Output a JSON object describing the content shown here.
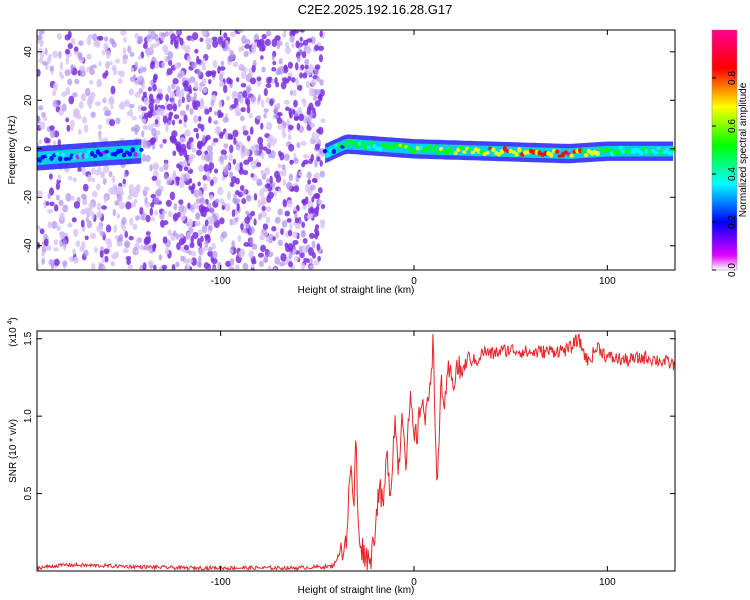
{
  "title": "C2E2.2025.192.16.28.G17",
  "colors": {
    "line": "#e8262a",
    "speckle": "#7a2ee0",
    "speckle_light": "#d7c2f4",
    "frame": "#000000"
  },
  "chart_data": [
    {
      "type": "heatmap",
      "xlabel": "Height of straight line (km)",
      "ylabel": "Frequency (Hz)",
      "xlim": [
        -195,
        135
      ],
      "ylim": [
        -50,
        49
      ],
      "xticks": [
        -100,
        0,
        100
      ],
      "xtick_labels": [
        "-100",
        "0",
        "100"
      ],
      "yticks": [
        -40,
        -20,
        0,
        20,
        40
      ],
      "ytick_labels": [
        "-40",
        "-20",
        "0",
        "20",
        "40"
      ],
      "grid": false,
      "colorbar": {
        "label": "Normalized spectral amplitude",
        "range": [
          0,
          1
        ],
        "ticks": [
          0.0,
          0.2,
          0.4,
          0.6,
          0.8
        ],
        "tick_labels": [
          "0.0",
          "0.2",
          "0.4",
          "0.6",
          "0.8"
        ],
        "colormap": [
          "#ffffff",
          "#e000ff",
          "#0000ff",
          "#00ffff",
          "#00ff00",
          "#ffff00",
          "#ff0000",
          "#ff0090"
        ]
      },
      "noise_bands": [
        {
          "x_range": [
            -195,
            -140
          ],
          "density": "sparse"
        },
        {
          "x_range": [
            -140,
            -47
          ],
          "density": "dense"
        }
      ],
      "ridge": [
        {
          "x": -195,
          "y": -4,
          "amplitude": 0.3
        },
        {
          "x": -160,
          "y": -2,
          "amplitude": 0.3
        },
        {
          "x": -140,
          "y": -1,
          "amplitude": 0.25
        },
        {
          "x": -46,
          "y": -2,
          "amplitude": 0.3
        },
        {
          "x": -35,
          "y": 2,
          "amplitude": 0.5
        },
        {
          "x": 0,
          "y": 0,
          "amplitude": 0.6
        },
        {
          "x": 40,
          "y": -1,
          "amplitude": 0.7
        },
        {
          "x": 80,
          "y": -2,
          "amplitude": 0.9
        },
        {
          "x": 100,
          "y": -1,
          "amplitude": 0.5
        },
        {
          "x": 135,
          "y": -1,
          "amplitude": 0.4
        }
      ]
    },
    {
      "type": "line",
      "xlabel": "Height of straight line (km)",
      "ylabel": "SNR (10 * v/v)",
      "yscale_label": "(x10^4)",
      "xlim": [
        -195,
        135
      ],
      "ylim": [
        0,
        1.55
      ],
      "xticks": [
        -100,
        0,
        100
      ],
      "xtick_labels": [
        "-100",
        "0",
        "100"
      ],
      "yticks": [
        0.5,
        1.0,
        1.5
      ],
      "ytick_labels": [
        "0.5",
        "1.0",
        "1.5"
      ],
      "grid": false,
      "series": [
        {
          "color": "#e8262a",
          "x": [
            -195,
            -180,
            -150,
            -120,
            -100,
            -80,
            -60,
            -42,
            -35,
            -33,
            -31,
            -30,
            -29,
            -27,
            -24,
            -22,
            -20,
            -18,
            -16,
            -14,
            -12,
            -10,
            -8,
            -6,
            -4,
            -2,
            0,
            2,
            4,
            6,
            8,
            10,
            12,
            14,
            16,
            18,
            20,
            22,
            25,
            28,
            32,
            36,
            40,
            45,
            50,
            60,
            70,
            80,
            85,
            90,
            95,
            100,
            110,
            120,
            130,
            135
          ],
          "values": [
            0.02,
            0.04,
            0.03,
            0.02,
            0.02,
            0.02,
            0.02,
            0.03,
            0.2,
            0.65,
            0.45,
            0.9,
            0.3,
            0.15,
            0.08,
            0.1,
            0.3,
            0.55,
            0.4,
            0.75,
            0.5,
            1.0,
            0.65,
            1.05,
            0.7,
            1.1,
            0.85,
            0.9,
            1.15,
            0.95,
            1.2,
            1.48,
            0.45,
            1.25,
            1.05,
            1.3,
            1.2,
            1.32,
            1.28,
            1.38,
            1.35,
            1.42,
            1.4,
            1.42,
            1.43,
            1.41,
            1.42,
            1.43,
            1.5,
            1.35,
            1.45,
            1.38,
            1.36,
            1.38,
            1.35,
            1.33
          ]
        }
      ]
    }
  ]
}
